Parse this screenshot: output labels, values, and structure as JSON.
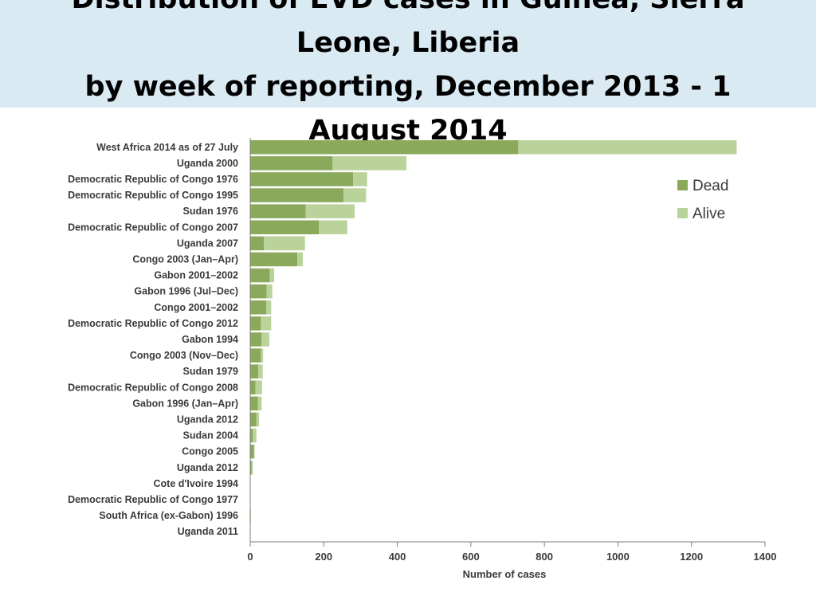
{
  "slide": {
    "title_lines": [
      "Distribution of EVD cases in Guinea, Sierra",
      "Leone, Liberia",
      "by week of reporting, December 2013 - 1",
      "August 2014"
    ]
  },
  "colors": {
    "title_band": "#daeaf3",
    "dead": "#8aa95a",
    "alive": "#b9d39b",
    "axis": "#7f7f7f"
  },
  "chart_data": {
    "type": "bar",
    "orientation": "horizontal",
    "stacked": true,
    "categories": [
      "West Africa 2014 as of 27 July",
      "Uganda 2000",
      "Democratic Republic of Congo 1976",
      "Democratic Republic of Congo 1995",
      "Sudan 1976",
      "Democratic Republic of Congo 2007",
      "Uganda 2007",
      "Congo 2003 (Jan–Apr)",
      "Gabon 2001–2002",
      "Gabon 1996 (Jul–Dec)",
      "Congo 2001–2002",
      "Democratic Republic of Congo 2012",
      "Gabon 1994",
      "Congo 2003 (Nov–Dec)",
      "Sudan 1979",
      "Democratic Republic of Congo 2008",
      "Gabon 1996 (Jan–Apr)",
      "Uganda 2012",
      "Sudan 2004",
      "Congo 2005",
      "Uganda 2012",
      "Cote d'Ivoire 1994",
      "Democratic Republic of Congo 1977",
      "South Africa (ex-Gabon) 1996",
      "Uganda 2011"
    ],
    "series": [
      {
        "name": "Dead",
        "values": [
          729,
          224,
          280,
          254,
          151,
          187,
          37,
          128,
          53,
          45,
          44,
          29,
          31,
          29,
          22,
          14,
          21,
          17,
          7,
          10,
          4,
          0,
          1,
          1,
          1
        ]
      },
      {
        "name": "Alive",
        "values": [
          594,
          201,
          38,
          61,
          133,
          77,
          112,
          15,
          12,
          15,
          13,
          28,
          21,
          6,
          12,
          18,
          10,
          7,
          10,
          2,
          3,
          1,
          0,
          1,
          0
        ]
      }
    ],
    "xlabel": "Number of cases",
    "ylabel": "",
    "xlim": [
      0,
      1400
    ],
    "xticks": [
      0,
      200,
      400,
      600,
      800,
      1000,
      1200,
      1400
    ],
    "legend": {
      "position": "top-right",
      "entries": [
        "Dead",
        "Alive"
      ]
    },
    "grid": false
  }
}
